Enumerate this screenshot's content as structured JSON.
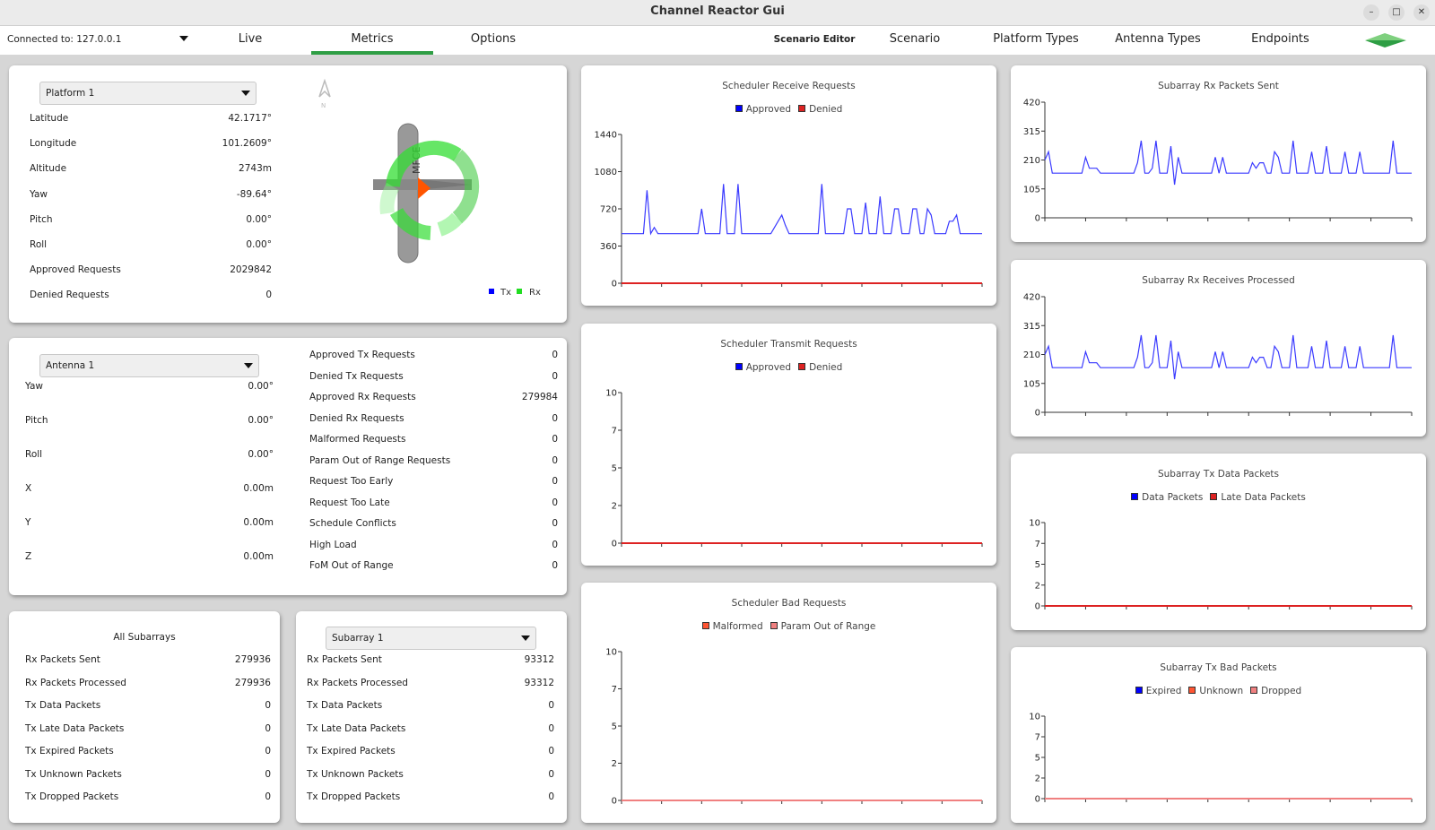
{
  "window": {
    "title": "Channel Reactor Gui",
    "minimize": "–",
    "maximize": "□",
    "close": "✕"
  },
  "nav": {
    "connection": "Connected to: 127.0.0.1",
    "tabs": [
      "Live",
      "Metrics",
      "Options"
    ],
    "active_tab": "Metrics",
    "scenario_editor": "Scenario Editor",
    "right_tabs": [
      "Scenario",
      "Platform Types",
      "Antenna Types",
      "Endpoints"
    ],
    "accent": "#2e9e44"
  },
  "platform": {
    "selected": "Platform 1",
    "rows": [
      {
        "label": "Latitude",
        "value": "42.1717°"
      },
      {
        "label": "Longitude",
        "value": "101.2609°"
      },
      {
        "label": "Altitude",
        "value": "2743m"
      },
      {
        "label": "Yaw",
        "value": "-89.64°"
      },
      {
        "label": "Pitch",
        "value": "0.00°"
      },
      {
        "label": "Roll",
        "value": "0.00°"
      },
      {
        "label": "Approved Requests",
        "value": "2029842"
      },
      {
        "label": "Denied Requests",
        "value": "0"
      }
    ],
    "compass": "N",
    "aircraft_marking": "MFCE",
    "legend": [
      {
        "name": "Tx",
        "color": "#0000ff"
      },
      {
        "name": "Rx",
        "color": "#22dd22"
      }
    ]
  },
  "antenna": {
    "selected": "Antenna 1",
    "rows": [
      {
        "label": "Yaw",
        "value": "0.00°"
      },
      {
        "label": "Pitch",
        "value": "0.00°"
      },
      {
        "label": "Roll",
        "value": "0.00°"
      },
      {
        "label": "X",
        "value": "0.00m"
      },
      {
        "label": "Y",
        "value": "0.00m"
      },
      {
        "label": "Z",
        "value": "0.00m"
      }
    ],
    "requests": [
      {
        "label": "Approved Tx Requests",
        "value": "0"
      },
      {
        "label": "Denied Tx Requests",
        "value": "0"
      },
      {
        "label": "Approved Rx Requests",
        "value": "279984"
      },
      {
        "label": "Denied Rx Requests",
        "value": "0"
      },
      {
        "label": "Malformed Requests",
        "value": "0"
      },
      {
        "label": "Param Out of Range Requests",
        "value": "0"
      },
      {
        "label": "Request Too Early",
        "value": "0"
      },
      {
        "label": "Request Too Late",
        "value": "0"
      },
      {
        "label": "Schedule Conflicts",
        "value": "0"
      },
      {
        "label": "High Load",
        "value": "0"
      },
      {
        "label": "FoM Out of Range",
        "value": "0"
      }
    ]
  },
  "all_subarrays": {
    "title": "All Subarrays",
    "rows": [
      {
        "label": "Rx Packets Sent",
        "value": "279936"
      },
      {
        "label": "Rx Packets Processed",
        "value": "279936"
      },
      {
        "label": "Tx Data Packets",
        "value": "0"
      },
      {
        "label": "Tx Late Data Packets",
        "value": "0"
      },
      {
        "label": "Tx Expired Packets",
        "value": "0"
      },
      {
        "label": "Tx Unknown Packets",
        "value": "0"
      },
      {
        "label": "Tx Dropped Packets",
        "value": "0"
      }
    ]
  },
  "subarray": {
    "selected": "Subarray 1",
    "rows": [
      {
        "label": "Rx Packets Sent",
        "value": "93312"
      },
      {
        "label": "Rx Packets Processed",
        "value": "93312"
      },
      {
        "label": "Tx Data Packets",
        "value": "0"
      },
      {
        "label": "Tx Late Data Packets",
        "value": "0"
      },
      {
        "label": "Tx Expired Packets",
        "value": "0"
      },
      {
        "label": "Tx Unknown Packets",
        "value": "0"
      },
      {
        "label": "Tx Dropped Packets",
        "value": "0"
      }
    ]
  },
  "chart_data": [
    {
      "type": "line",
      "title": "Scheduler Receive Requests",
      "legend": [
        {
          "name": "Approved",
          "color": "#0000ff"
        },
        {
          "name": "Denied",
          "color": "#dd2222"
        }
      ],
      "ylim": [
        0,
        1440
      ],
      "yticks": [
        "0",
        "360",
        "720",
        "1080",
        "1440"
      ],
      "grid": false,
      "series": [
        {
          "name": "Approved",
          "color": "#3a3aff",
          "values": [
            480,
            480,
            480,
            480,
            480,
            480,
            480,
            900,
            480,
            540,
            480,
            480,
            480,
            480,
            480,
            480,
            480,
            480,
            480,
            480,
            480,
            480,
            720,
            480,
            480,
            480,
            480,
            480,
            960,
            480,
            480,
            480,
            960,
            480,
            480,
            480,
            480,
            480,
            480,
            480,
            480,
            480,
            540,
            600,
            660,
            560,
            480,
            480,
            480,
            480,
            480,
            480,
            480,
            480,
            480,
            960,
            480,
            480,
            480,
            480,
            480,
            480,
            720,
            720,
            480,
            480,
            480,
            780,
            480,
            480,
            480,
            840,
            480,
            480,
            480,
            720,
            720,
            480,
            480,
            480,
            720,
            720,
            480,
            480,
            720,
            660,
            480,
            480,
            480,
            480,
            600,
            600,
            660,
            480,
            480,
            480,
            480,
            480,
            480,
            480
          ]
        },
        {
          "name": "Denied",
          "color": "#dd2222",
          "values": [
            0,
            0
          ]
        }
      ]
    },
    {
      "type": "line",
      "title": "Scheduler Transmit Requests",
      "legend": [
        {
          "name": "Approved",
          "color": "#0000ff"
        },
        {
          "name": "Denied",
          "color": "#dd2222"
        }
      ],
      "ylim": [
        0,
        10
      ],
      "yticks": [
        "0",
        "2",
        "5",
        "7",
        "10"
      ],
      "grid": false,
      "series": [
        {
          "name": "Approved",
          "color": "#3a3aff",
          "values": [
            0,
            0
          ]
        },
        {
          "name": "Denied",
          "color": "#dd2222",
          "values": [
            0,
            0
          ]
        }
      ]
    },
    {
      "type": "line",
      "title": "Scheduler Bad Requests",
      "legend": [
        {
          "name": "Malformed",
          "color": "#ff5533"
        },
        {
          "name": "Param Out of Range",
          "color": "#f08080"
        }
      ],
      "ylim": [
        0,
        10
      ],
      "yticks": [
        "0",
        "2",
        "5",
        "7",
        "10"
      ],
      "grid": false,
      "series": [
        {
          "name": "Malformed",
          "color": "#ff5533",
          "values": [
            0,
            0
          ]
        },
        {
          "name": "Param Out of Range",
          "color": "#f08080",
          "values": [
            0,
            0
          ]
        }
      ]
    },
    {
      "type": "line",
      "title": "Subarray Rx Packets Sent",
      "legend": [],
      "ylim": [
        0,
        420
      ],
      "yticks": [
        "0",
        "105",
        "210",
        "315",
        "420"
      ],
      "grid": false,
      "series": [
        {
          "color": "#3a3aff",
          "values": [
            210,
            240,
            162,
            162,
            162,
            162,
            162,
            162,
            162,
            162,
            162,
            220,
            180,
            180,
            180,
            162,
            162,
            162,
            162,
            162,
            162,
            162,
            162,
            162,
            162,
            200,
            280,
            162,
            162,
            180,
            280,
            162,
            162,
            162,
            260,
            120,
            220,
            162,
            162,
            162,
            162,
            162,
            162,
            162,
            162,
            162,
            220,
            162,
            220,
            162,
            162,
            162,
            162,
            162,
            162,
            162,
            200,
            180,
            200,
            200,
            162,
            162,
            240,
            220,
            162,
            162,
            162,
            280,
            162,
            162,
            162,
            162,
            240,
            162,
            162,
            162,
            260,
            162,
            162,
            162,
            162,
            240,
            162,
            162,
            162,
            240,
            162,
            162,
            162,
            162,
            162,
            162,
            162,
            162,
            280,
            162,
            162,
            162,
            162,
            162
          ]
        }
      ]
    },
    {
      "type": "line",
      "title": "Subarray Rx Receives Processed",
      "legend": [],
      "ylim": [
        0,
        420
      ],
      "yticks": [
        "0",
        "105",
        "210",
        "315",
        "420"
      ],
      "grid": false,
      "series": [
        {
          "color": "#3a3aff",
          "values": [
            210,
            240,
            162,
            162,
            162,
            162,
            162,
            162,
            162,
            162,
            162,
            220,
            180,
            180,
            180,
            162,
            162,
            162,
            162,
            162,
            162,
            162,
            162,
            162,
            162,
            200,
            280,
            162,
            162,
            180,
            280,
            162,
            162,
            162,
            260,
            120,
            220,
            162,
            162,
            162,
            162,
            162,
            162,
            162,
            162,
            162,
            220,
            162,
            220,
            162,
            162,
            162,
            162,
            162,
            162,
            162,
            200,
            180,
            200,
            200,
            162,
            162,
            240,
            220,
            162,
            162,
            162,
            280,
            162,
            162,
            162,
            162,
            240,
            162,
            162,
            162,
            260,
            162,
            162,
            162,
            162,
            240,
            162,
            162,
            162,
            240,
            162,
            162,
            162,
            162,
            162,
            162,
            162,
            162,
            280,
            162,
            162,
            162,
            162,
            162
          ]
        }
      ]
    },
    {
      "type": "line",
      "title": "Subarray Tx Data Packets",
      "legend": [
        {
          "name": "Data Packets",
          "color": "#0000ff"
        },
        {
          "name": "Late Data Packets",
          "color": "#dd2222"
        }
      ],
      "ylim": [
        0,
        10
      ],
      "yticks": [
        "0",
        "2",
        "5",
        "7",
        "10"
      ],
      "grid": false,
      "series": [
        {
          "name": "Data Packets",
          "color": "#3a3aff",
          "values": [
            0,
            0
          ]
        },
        {
          "name": "Late Data Packets",
          "color": "#dd2222",
          "values": [
            0,
            0
          ]
        }
      ]
    },
    {
      "type": "line",
      "title": "Subarray Tx Bad Packets",
      "legend": [
        {
          "name": "Expired",
          "color": "#0000ff"
        },
        {
          "name": "Unknown",
          "color": "#ff5533"
        },
        {
          "name": "Dropped",
          "color": "#f08080"
        }
      ],
      "ylim": [
        0,
        10
      ],
      "yticks": [
        "0",
        "2",
        "5",
        "7",
        "10"
      ],
      "grid": false,
      "series": [
        {
          "name": "Expired",
          "color": "#3a3aff",
          "values": [
            0,
            0
          ]
        },
        {
          "name": "Unknown",
          "color": "#ff5533",
          "values": [
            0,
            0
          ]
        },
        {
          "name": "Dropped",
          "color": "#f08080",
          "values": [
            0,
            0
          ]
        }
      ]
    }
  ]
}
